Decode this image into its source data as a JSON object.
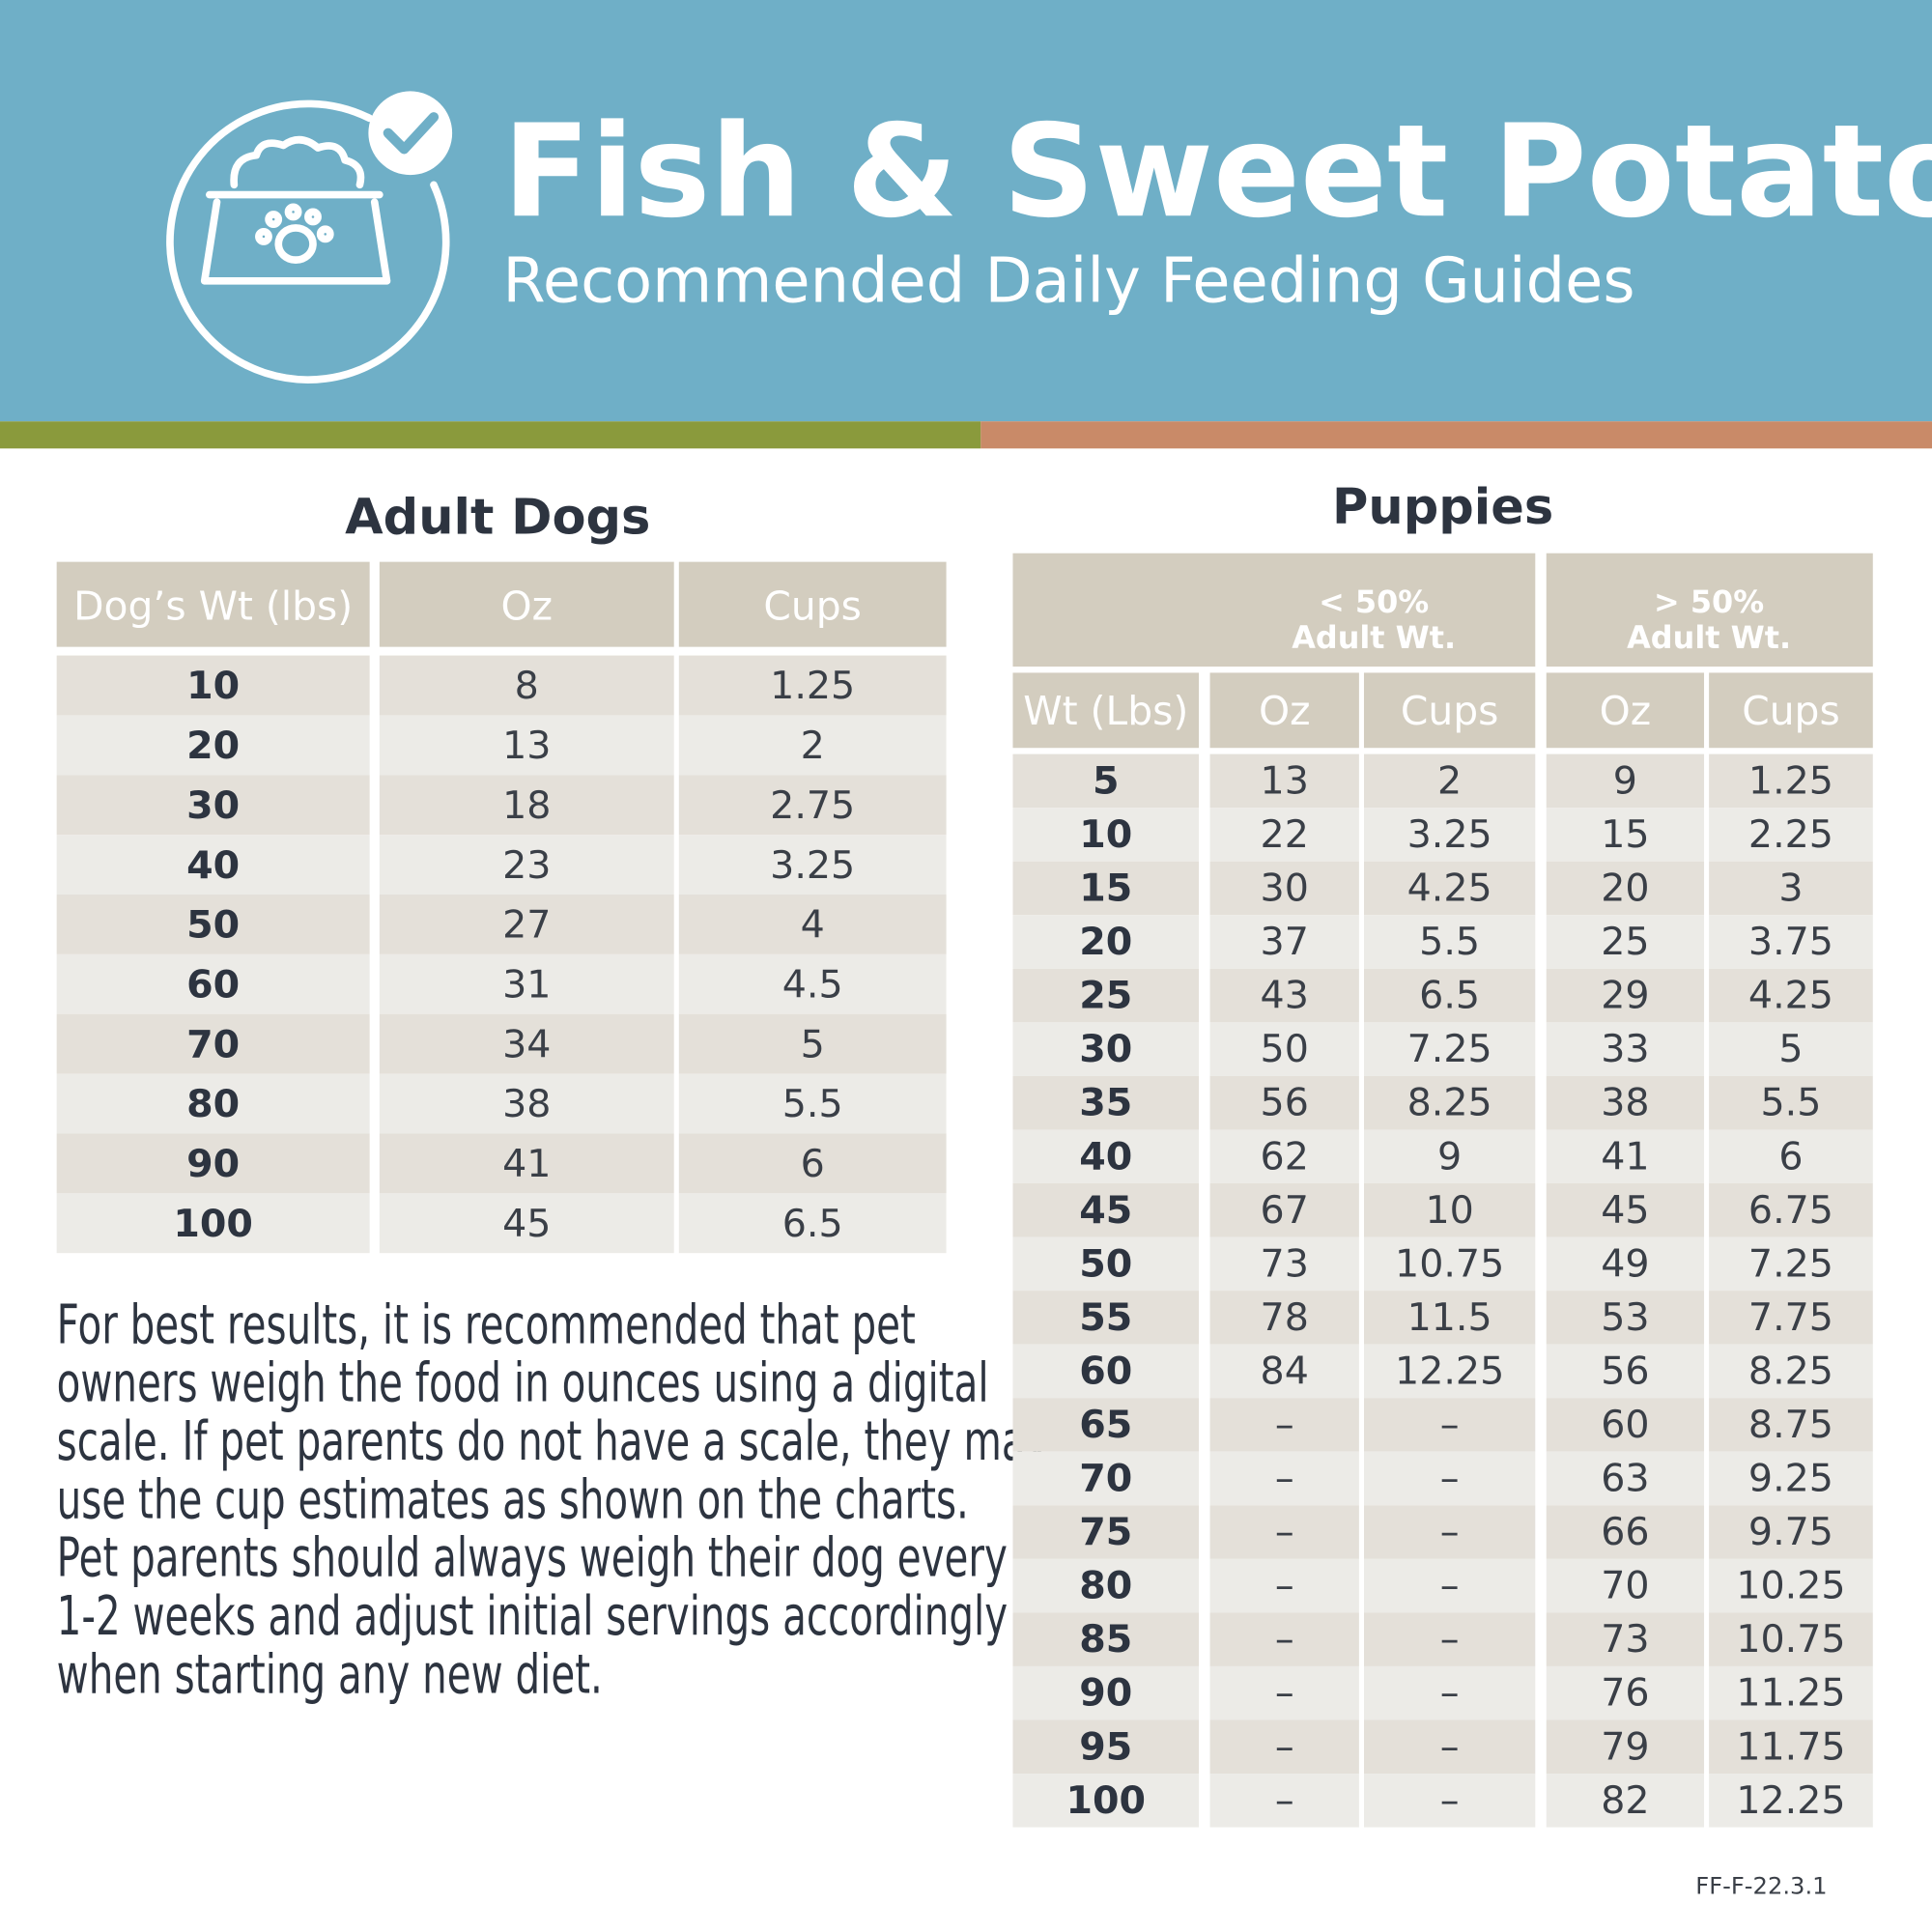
{
  "header": {
    "title": "Fish & Sweet Potato",
    "subtitle": "Recommended Daily Feeding Guides"
  },
  "adult": {
    "title": "Adult Dogs",
    "columns": [
      "Dog’s Wt (lbs)",
      "Oz",
      "Cups"
    ],
    "rows": [
      [
        10,
        8,
        1.25
      ],
      [
        20,
        13,
        2
      ],
      [
        30,
        18,
        2.75
      ],
      [
        40,
        23,
        3.25
      ],
      [
        50,
        27,
        4
      ],
      [
        60,
        31,
        4.5
      ],
      [
        70,
        34,
        5
      ],
      [
        80,
        38,
        5.5
      ],
      [
        90,
        41,
        6
      ],
      [
        100,
        45,
        6.5
      ]
    ]
  },
  "note": [
    "For best results, it is recommended that pet",
    "owners weigh the food in ounces using a digital",
    "scale. If pet parents do not have a scale, they may",
    "use the cup estimates as shown on the charts.",
    "Pet parents should always weigh their dog every",
    "1-2 weeks and adjust initial servings accordingly",
    "when starting any new diet."
  ],
  "puppies": {
    "title": "Puppies",
    "groups": [
      [
        "< 50%",
        "Adult Wt."
      ],
      [
        "> 50%",
        "Adult Wt."
      ]
    ],
    "columns": [
      "Wt (Lbs)",
      "Oz",
      "Cups",
      "Oz",
      "Cups"
    ],
    "rows": [
      [
        5,
        13,
        2,
        9,
        1.25
      ],
      [
        10,
        22,
        3.25,
        15,
        2.25
      ],
      [
        15,
        30,
        4.25,
        20,
        3
      ],
      [
        20,
        37,
        5.5,
        25,
        3.75
      ],
      [
        25,
        43,
        6.5,
        29,
        4.25
      ],
      [
        30,
        50,
        7.25,
        33,
        5
      ],
      [
        35,
        56,
        8.25,
        38,
        5.5
      ],
      [
        40,
        62,
        9,
        41,
        6
      ],
      [
        45,
        67,
        10,
        45,
        6.75
      ],
      [
        50,
        73,
        10.75,
        49,
        7.25
      ],
      [
        55,
        78,
        11.5,
        53,
        7.75
      ],
      [
        60,
        84,
        12.25,
        56,
        8.25
      ],
      [
        65,
        "–",
        "–",
        60,
        8.75
      ],
      [
        70,
        "–",
        "–",
        63,
        9.25
      ],
      [
        75,
        "–",
        "–",
        66,
        9.75
      ],
      [
        80,
        "–",
        "–",
        70,
        10.25
      ],
      [
        85,
        "–",
        "–",
        73,
        10.75
      ],
      [
        90,
        "–",
        "–",
        76,
        11.25
      ],
      [
        95,
        "–",
        "–",
        79,
        11.75
      ],
      [
        100,
        "–",
        "–",
        82,
        12.25
      ]
    ]
  },
  "code": "FF-F-22.3.1"
}
